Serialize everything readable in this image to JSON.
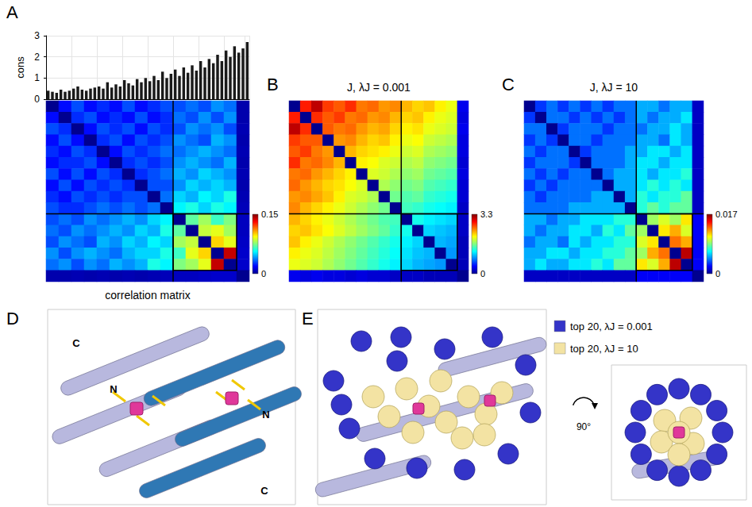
{
  "chart_data": [
    {
      "type": "bar",
      "panel": "A",
      "ylabel": "cons",
      "categories": [
        null,
        null,
        null,
        null,
        null,
        null,
        null,
        null,
        null,
        null,
        null,
        null,
        null,
        null,
        null,
        null,
        null,
        null,
        null,
        null,
        null,
        null,
        null,
        null,
        null,
        null,
        null,
        null,
        null,
        null,
        null,
        null,
        null,
        null,
        null,
        null,
        null,
        null,
        null,
        null,
        null,
        null,
        null,
        null,
        null,
        null,
        null,
        null
      ],
      "values": [
        0.4,
        0.35,
        0.3,
        0.45,
        0.35,
        0.4,
        0.5,
        0.6,
        0.45,
        0.4,
        0.5,
        0.55,
        0.6,
        0.5,
        0.8,
        0.55,
        0.7,
        0.6,
        0.9,
        0.75,
        0.65,
        0.95,
        0.8,
        1.0,
        0.85,
        1.1,
        0.9,
        1.3,
        1.0,
        1.2,
        1.4,
        1.1,
        1.5,
        1.25,
        1.6,
        1.35,
        1.8,
        1.5,
        1.9,
        1.7,
        2.1,
        1.8,
        2.3,
        2.0,
        2.5,
        2.2,
        2.4,
        2.7
      ],
      "color": "#1a1a1a",
      "ylim": [
        0,
        3
      ],
      "yticks": [
        0,
        1,
        2,
        3
      ],
      "grid": true,
      "tick_labels": "y"
    },
    {
      "type": "heatmap",
      "xlabel": "correlation matrix",
      "cells": [
        [
          0,
          0.02,
          0.03,
          0.02,
          0.025,
          0.02,
          0.03,
          0.02,
          0.025,
          0.03,
          0.03,
          0.035,
          0.03,
          0.04,
          0.035,
          0.005
        ],
        [
          0.02,
          0,
          0.025,
          0.03,
          0.02,
          0.025,
          0.02,
          0.03,
          0.02,
          0.025,
          0.035,
          0.03,
          0.04,
          0.03,
          0.04,
          0.005
        ],
        [
          0.03,
          0.025,
          0,
          0.02,
          0.03,
          0.025,
          0.03,
          0.02,
          0.03,
          0.025,
          0.03,
          0.04,
          0.035,
          0.04,
          0.03,
          0.006
        ],
        [
          0.02,
          0.03,
          0.02,
          0,
          0.025,
          0.03,
          0.02,
          0.03,
          0.025,
          0.03,
          0.04,
          0.035,
          0.03,
          0.045,
          0.04,
          0.005
        ],
        [
          0.025,
          0.02,
          0.03,
          0.025,
          0,
          0.02,
          0.03,
          0.025,
          0.03,
          0.035,
          0.035,
          0.04,
          0.045,
          0.04,
          0.035,
          0.006
        ],
        [
          0.02,
          0.025,
          0.025,
          0.03,
          0.02,
          0,
          0.025,
          0.03,
          0.025,
          0.03,
          0.04,
          0.045,
          0.04,
          0.035,
          0.045,
          0.005
        ],
        [
          0.03,
          0.02,
          0.03,
          0.02,
          0.03,
          0.025,
          0,
          0.025,
          0.03,
          0.035,
          0.045,
          0.04,
          0.05,
          0.045,
          0.04,
          0.006
        ],
        [
          0.02,
          0.03,
          0.02,
          0.03,
          0.025,
          0.03,
          0.025,
          0,
          0.03,
          0.03,
          0.04,
          0.05,
          0.045,
          0.05,
          0.045,
          0.005
        ],
        [
          0.025,
          0.02,
          0.03,
          0.025,
          0.03,
          0.025,
          0.03,
          0.03,
          0,
          0.035,
          0.05,
          0.045,
          0.055,
          0.05,
          0.06,
          0.006
        ],
        [
          0.03,
          0.025,
          0.025,
          0.03,
          0.035,
          0.03,
          0.035,
          0.03,
          0.035,
          0,
          0.055,
          0.06,
          0.05,
          0.06,
          0.055,
          0.007
        ],
        [
          0.03,
          0.035,
          0.03,
          0.04,
          0.035,
          0.04,
          0.045,
          0.04,
          0.05,
          0.055,
          0,
          0.07,
          0.08,
          0.065,
          0.075,
          0.008
        ],
        [
          0.035,
          0.03,
          0.04,
          0.035,
          0.04,
          0.045,
          0.04,
          0.05,
          0.045,
          0.06,
          0.07,
          0,
          0.085,
          0.09,
          0.08,
          0.008
        ],
        [
          0.03,
          0.04,
          0.035,
          0.03,
          0.045,
          0.04,
          0.05,
          0.045,
          0.055,
          0.05,
          0.08,
          0.085,
          0,
          0.1,
          0.09,
          0.009
        ],
        [
          0.04,
          0.03,
          0.04,
          0.045,
          0.04,
          0.035,
          0.045,
          0.05,
          0.05,
          0.06,
          0.065,
          0.09,
          0.1,
          0,
          0.14,
          0.01
        ],
        [
          0.035,
          0.04,
          0.03,
          0.04,
          0.035,
          0.045,
          0.04,
          0.045,
          0.06,
          0.055,
          0.075,
          0.08,
          0.09,
          0.14,
          0,
          0.01
        ],
        [
          0.005,
          0.005,
          0.006,
          0.005,
          0.006,
          0.005,
          0.006,
          0.005,
          0.006,
          0.007,
          0.008,
          0.008,
          0.009,
          0.01,
          0.01,
          0
        ]
      ],
      "color_range": [
        0,
        0.15
      ],
      "color_ticks": [
        0,
        0.15
      ],
      "highlight": [
        10,
        15
      ],
      "tick_labels": false
    },
    {
      "type": "heatmap",
      "panel": "B",
      "title": "J, λJ = 0.001",
      "cells": [
        [
          0,
          2.8,
          3.1,
          2.7,
          2.6,
          2.75,
          2.5,
          2.55,
          2.4,
          2.45,
          2.3,
          2.2,
          2.25,
          2.1,
          2.0,
          0.35
        ],
        [
          2.8,
          0,
          2.75,
          2.6,
          2.7,
          2.5,
          2.55,
          2.4,
          2.45,
          2.3,
          2.2,
          2.25,
          2.1,
          2.0,
          1.95,
          0.3
        ],
        [
          3.1,
          2.75,
          0,
          2.6,
          2.5,
          2.55,
          2.4,
          2.3,
          2.35,
          2.2,
          2.1,
          2.15,
          2.0,
          1.95,
          1.9,
          0.35
        ],
        [
          2.7,
          2.6,
          2.6,
          0,
          2.4,
          2.45,
          2.3,
          2.2,
          2.25,
          2.1,
          2.0,
          2.05,
          1.9,
          1.85,
          1.8,
          0.3
        ],
        [
          2.6,
          2.7,
          2.5,
          2.4,
          0,
          2.3,
          2.2,
          2.15,
          2.1,
          2.0,
          1.9,
          1.95,
          1.8,
          1.75,
          1.7,
          0.3
        ],
        [
          2.75,
          2.5,
          2.55,
          2.45,
          2.3,
          0,
          2.1,
          2.05,
          1.95,
          1.9,
          1.8,
          1.85,
          1.7,
          1.65,
          1.6,
          0.25
        ],
        [
          2.5,
          2.55,
          2.4,
          2.3,
          2.2,
          2.1,
          0,
          1.95,
          1.9,
          1.8,
          1.7,
          1.75,
          1.6,
          1.55,
          1.5,
          0.3
        ],
        [
          2.55,
          2.4,
          2.3,
          2.2,
          2.15,
          2.05,
          1.95,
          0,
          1.8,
          1.7,
          1.6,
          1.65,
          1.5,
          1.45,
          1.4,
          0.25
        ],
        [
          2.4,
          2.45,
          2.35,
          2.25,
          2.1,
          1.95,
          1.9,
          1.8,
          0,
          1.6,
          1.5,
          1.55,
          1.4,
          1.35,
          1.3,
          0.25
        ],
        [
          2.45,
          2.3,
          2.2,
          2.1,
          2.0,
          1.9,
          1.8,
          1.7,
          1.6,
          0,
          1.45,
          1.4,
          1.3,
          1.25,
          1.2,
          0.2
        ],
        [
          2.3,
          2.2,
          2.1,
          2.0,
          1.9,
          1.8,
          1.7,
          1.6,
          1.5,
          1.45,
          0,
          1.3,
          1.2,
          1.15,
          1.1,
          0.2
        ],
        [
          2.2,
          2.25,
          2.15,
          2.05,
          1.95,
          1.85,
          1.75,
          1.65,
          1.55,
          1.4,
          1.3,
          0,
          1.1,
          1.05,
          1.0,
          0.2
        ],
        [
          2.25,
          2.1,
          2.0,
          1.9,
          1.8,
          1.7,
          1.6,
          1.5,
          1.4,
          1.3,
          1.2,
          1.1,
          0,
          1.0,
          0.95,
          0.15
        ],
        [
          2.1,
          2.0,
          1.95,
          1.85,
          1.75,
          1.65,
          1.55,
          1.45,
          1.35,
          1.25,
          1.15,
          1.05,
          1.0,
          0,
          0.9,
          0.15
        ],
        [
          2.0,
          1.95,
          1.9,
          1.8,
          1.7,
          1.6,
          1.5,
          1.4,
          1.3,
          1.2,
          1.1,
          1.0,
          0.95,
          0.9,
          0,
          0.15
        ],
        [
          0.35,
          0.3,
          0.35,
          0.3,
          0.3,
          0.25,
          0.3,
          0.25,
          0.25,
          0.2,
          0.2,
          0.2,
          0.15,
          0.15,
          0.15,
          0
        ]
      ],
      "color_range": [
        0,
        3.3
      ],
      "color_ticks": [
        0,
        3.3
      ],
      "highlight": [
        10,
        15
      ],
      "tick_labels": false
    },
    {
      "type": "heatmap",
      "panel": "C",
      "title": "J, λJ = 10",
      "cells": [
        [
          0,
          0.003,
          0.004,
          0.003,
          0.004,
          0.003,
          0.004,
          0.003,
          0.004,
          0.004,
          0.005,
          0.005,
          0.004,
          0.005,
          0.005,
          0.001
        ],
        [
          0.003,
          0,
          0.004,
          0.004,
          0.003,
          0.004,
          0.003,
          0.004,
          0.003,
          0.004,
          0.005,
          0.004,
          0.005,
          0.005,
          0.006,
          0.001
        ],
        [
          0.004,
          0.004,
          0,
          0.003,
          0.004,
          0.004,
          0.004,
          0.003,
          0.004,
          0.004,
          0.004,
          0.005,
          0.005,
          0.006,
          0.005,
          0.001
        ],
        [
          0.003,
          0.004,
          0.003,
          0,
          0.004,
          0.004,
          0.003,
          0.004,
          0.004,
          0.004,
          0.005,
          0.005,
          0.004,
          0.006,
          0.005,
          0.001
        ],
        [
          0.004,
          0.003,
          0.004,
          0.004,
          0,
          0.003,
          0.004,
          0.004,
          0.004,
          0.005,
          0.005,
          0.006,
          0.006,
          0.005,
          0.006,
          0.001
        ],
        [
          0.003,
          0.004,
          0.004,
          0.004,
          0.003,
          0,
          0.004,
          0.004,
          0.004,
          0.005,
          0.006,
          0.006,
          0.005,
          0.006,
          0.006,
          0.001
        ],
        [
          0.004,
          0.003,
          0.004,
          0.003,
          0.004,
          0.004,
          0,
          0.004,
          0.005,
          0.005,
          0.006,
          0.005,
          0.006,
          0.006,
          0.007,
          0.001
        ],
        [
          0.003,
          0.004,
          0.003,
          0.004,
          0.004,
          0.004,
          0.004,
          0,
          0.005,
          0.005,
          0.006,
          0.007,
          0.006,
          0.007,
          0.006,
          0.001
        ],
        [
          0.004,
          0.003,
          0.004,
          0.004,
          0.004,
          0.004,
          0.005,
          0.005,
          0,
          0.005,
          0.007,
          0.006,
          0.007,
          0.007,
          0.008,
          0.001
        ],
        [
          0.004,
          0.004,
          0.004,
          0.004,
          0.005,
          0.005,
          0.005,
          0.005,
          0.005,
          0,
          0.007,
          0.008,
          0.007,
          0.008,
          0.008,
          0.001
        ],
        [
          0.005,
          0.005,
          0.004,
          0.005,
          0.005,
          0.006,
          0.006,
          0.006,
          0.007,
          0.007,
          0,
          0.009,
          0.01,
          0.009,
          0.011,
          0.002
        ],
        [
          0.005,
          0.004,
          0.005,
          0.005,
          0.006,
          0.006,
          0.005,
          0.007,
          0.006,
          0.008,
          0.009,
          0,
          0.011,
          0.012,
          0.01,
          0.002
        ],
        [
          0.004,
          0.005,
          0.005,
          0.004,
          0.006,
          0.005,
          0.006,
          0.006,
          0.007,
          0.007,
          0.01,
          0.011,
          0,
          0.013,
          0.012,
          0.002
        ],
        [
          0.005,
          0.005,
          0.006,
          0.006,
          0.005,
          0.006,
          0.006,
          0.007,
          0.007,
          0.008,
          0.009,
          0.012,
          0.013,
          0,
          0.016,
          0.002
        ],
        [
          0.005,
          0.006,
          0.005,
          0.005,
          0.006,
          0.006,
          0.007,
          0.006,
          0.008,
          0.008,
          0.011,
          0.01,
          0.012,
          0.016,
          0,
          0.002
        ],
        [
          0.001,
          0.001,
          0.001,
          0.001,
          0.001,
          0.001,
          0.001,
          0.001,
          0.001,
          0.001,
          0.002,
          0.002,
          0.002,
          0.002,
          0.002,
          0
        ]
      ],
      "color_range": [
        0,
        0.017
      ],
      "color_ticks": [
        0,
        0.017
      ],
      "highlight": [
        10,
        15
      ],
      "tick_labels": false
    }
  ],
  "structures": {
    "D": {
      "panel": "D",
      "labels": [
        "C",
        "N",
        "N",
        "C"
      ]
    },
    "E": {
      "panel": "E",
      "legend": [
        {
          "label": "top 20, λJ = 0.001",
          "color": "#3434c8"
        },
        {
          "label": "top 20, λJ = 10",
          "color": "#f3e3a3"
        }
      ],
      "rotation_label": "90°"
    }
  }
}
